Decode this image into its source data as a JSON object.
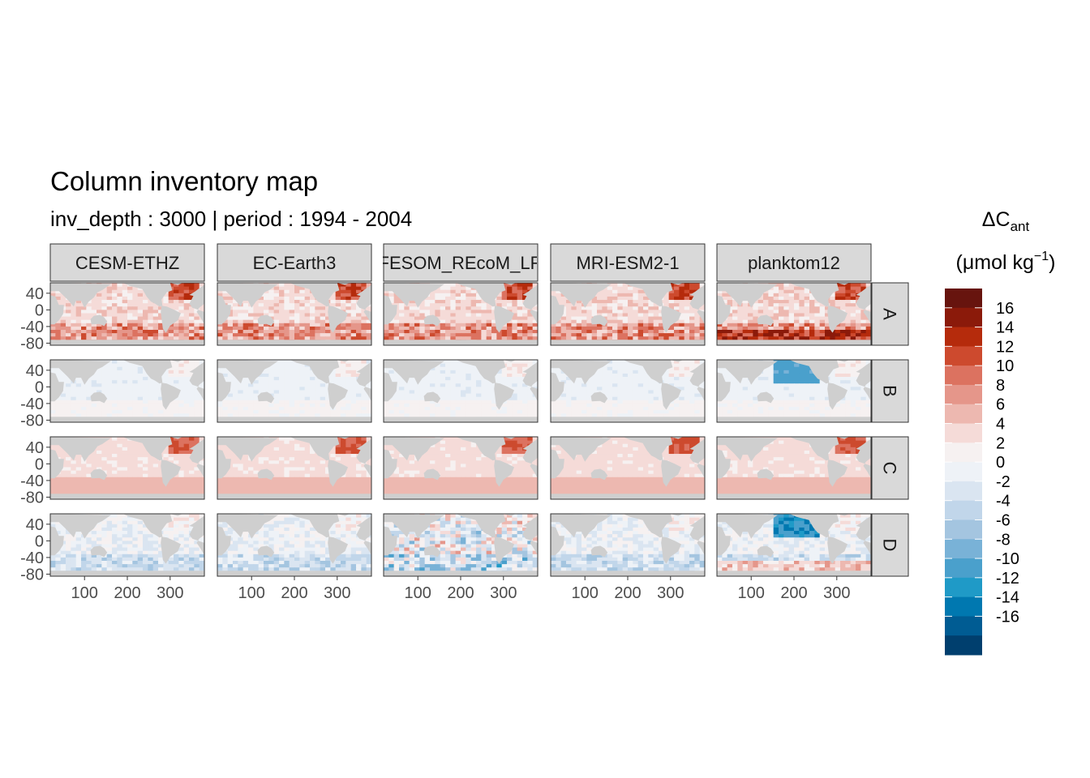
{
  "chart_data": {
    "type": "heatmap",
    "title": "Column inventory map",
    "subtitle": "inv_depth : 3000 | period : 1994 - 2004",
    "columns": [
      "CESM-ETHZ",
      "EC-Earth3",
      "FESOM_REcoM_LR",
      "MRI-ESM2-1",
      "planktom12"
    ],
    "rows": [
      "A",
      "B",
      "C",
      "D"
    ],
    "x_ticks": [
      100,
      200,
      300
    ],
    "y_ticks": [
      40,
      0,
      -40,
      -80
    ],
    "xlim": [
      20,
      380
    ],
    "ylim": [
      -85,
      65
    ],
    "legend": {
      "title_main": "ΔC",
      "title_sub": "ant",
      "unit_prefix": "(μmol kg",
      "unit_sup": "−1",
      "unit_suffix": ")",
      "labels": [
        "16",
        "14",
        "12",
        "10",
        "8",
        "6",
        "4",
        "2",
        "0",
        "-2",
        "-4",
        "-6",
        "-8",
        "-10",
        "-12",
        "-14",
        "-16"
      ],
      "colors": [
        "#67140e",
        "#8b1a0a",
        "#b52b0c",
        "#cd4a2e",
        "#dc7260",
        "#e5968a",
        "#edb8b0",
        "#f5dbd8",
        "#f6f1f1",
        "#eef2f7",
        "#dae5f1",
        "#c1d6ea",
        "#a4c5e0",
        "#79b2d7",
        "#4aa0cc",
        "#1f9ac7",
        "#0078b0",
        "#005c93",
        "#003f6e"
      ]
    },
    "panel_style": {
      "A": "strong_positive",
      "B": "near_zero",
      "C": "smooth_positive",
      "D": "mixed"
    }
  }
}
